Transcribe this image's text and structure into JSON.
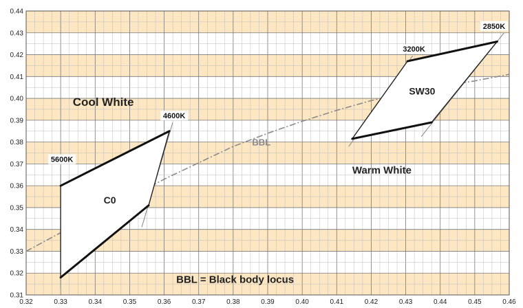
{
  "chart_data": {
    "type": "line",
    "title": "",
    "xlabel": "",
    "ylabel": "",
    "xlim": [
      0.32,
      0.46
    ],
    "ylim": [
      0.31,
      0.44
    ],
    "grid": true,
    "band_colors": [
      "#ffffff",
      "#fde7c3"
    ],
    "x_ticks": [
      "0.32",
      "0.33",
      "0.34",
      "0.35",
      "0.36",
      "0.37",
      "0.38",
      "0.39",
      "0.40",
      "0.41",
      "0.42",
      "0.43",
      "0.44",
      "0.45",
      "0.46"
    ],
    "y_ticks": [
      "0.31",
      "0.32",
      "0.33",
      "0.34",
      "0.35",
      "0.36",
      "0.37",
      "0.38",
      "0.39",
      "0.40",
      "0.41",
      "0.42",
      "0.43",
      "0.44"
    ],
    "series": [
      {
        "name": "BBL",
        "style": "dash-dot",
        "color": "#8a8a8a",
        "x": [
          0.32,
          0.33,
          0.34,
          0.35,
          0.36,
          0.37,
          0.38,
          0.39,
          0.4,
          0.41,
          0.42,
          0.43,
          0.44,
          0.45,
          0.46
        ],
        "y": [
          0.33,
          0.3385,
          0.3465,
          0.3545,
          0.363,
          0.3705,
          0.378,
          0.384,
          0.3895,
          0.3945,
          0.399,
          0.4025,
          0.4055,
          0.408,
          0.411
        ]
      }
    ],
    "regions": [
      {
        "label": "C0",
        "vertices": [
          [
            0.33,
            0.36
          ],
          [
            0.3615,
            0.385
          ],
          [
            0.3555,
            0.351
          ],
          [
            0.33,
            0.318
          ]
        ],
        "thick_edges": [
          [
            0,
            1
          ],
          [
            2,
            3
          ]
        ],
        "isotherms": [
          {
            "label": "5600K",
            "from": [
              0.33,
              0.369
            ],
            "to": [
              0.33,
              0.313
            ]
          },
          {
            "label": "4600K",
            "from": [
              0.3625,
              0.389
            ],
            "to": [
              0.3535,
              0.341
            ]
          }
        ]
      },
      {
        "label": "SW30",
        "vertices": [
          [
            0.4305,
            0.417
          ],
          [
            0.4565,
            0.426
          ],
          [
            0.4375,
            0.389
          ],
          [
            0.4145,
            0.3815
          ]
        ],
        "thick_edges": [
          [
            0,
            1
          ],
          [
            2,
            3
          ]
        ],
        "isotherms": [
          {
            "label": "3200K",
            "from": [
              0.432,
              0.4195
            ],
            "to": [
              0.4135,
              0.378
            ]
          },
          {
            "label": "2850K",
            "from": [
              0.4585,
              0.43
            ],
            "to": [
              0.4345,
              0.3825
            ]
          }
        ]
      }
    ],
    "annotations": [
      {
        "text": "Cool White",
        "x": 0.3335,
        "y": 0.3965,
        "size": "large"
      },
      {
        "text": "Warm White",
        "x": 0.4145,
        "y": 0.3655,
        "size": "medium"
      },
      {
        "text": "BBL",
        "x": 0.3855,
        "y": 0.3785,
        "size": "curve"
      },
      {
        "text": "BBL = Black body locus",
        "x": 0.3635,
        "y": 0.3155,
        "size": "medium"
      }
    ]
  }
}
